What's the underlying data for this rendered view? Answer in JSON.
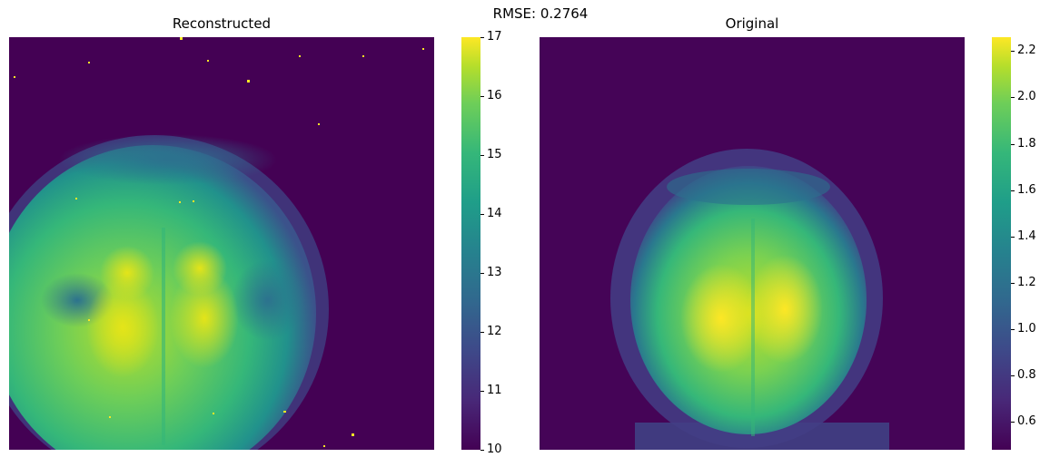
{
  "figure": {
    "suptitle": "RMSE: 0.2764"
  },
  "panels": [
    {
      "title": "Reconstructed",
      "image": "reconstructed-mri-brain-slice",
      "colormap": "viridis",
      "colorbar": {
        "min": 10,
        "max": 17,
        "ticks": [
          "10",
          "11",
          "12",
          "13",
          "14",
          "15",
          "16",
          "17"
        ]
      }
    },
    {
      "title": "Original",
      "image": "original-mri-brain-slice",
      "colormap": "viridis",
      "colorbar": {
        "min": 0.48,
        "max": 2.26,
        "ticks": [
          "0.6",
          "0.8",
          "1.0",
          "1.2",
          "1.4",
          "1.6",
          "1.8",
          "2.0",
          "2.2"
        ]
      }
    }
  ],
  "colors": {
    "viridis_low": "#440154",
    "viridis_mid": "#21918c",
    "viridis_high": "#fde725"
  }
}
